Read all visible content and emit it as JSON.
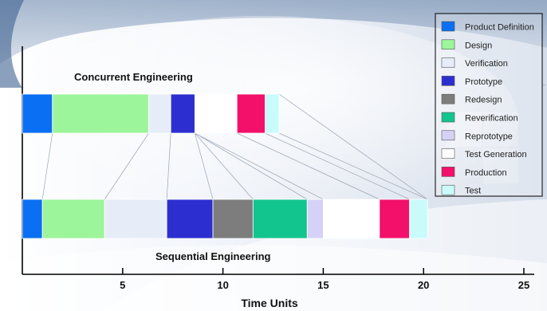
{
  "chart_data": {
    "type": "bar",
    "subtype": "stacked-horizontal-gantt",
    "xlabel": "Time Units",
    "x_ticks": [
      5,
      10,
      15,
      20,
      25
    ],
    "xlim": [
      0,
      25
    ],
    "stages": [
      "Product Definition",
      "Design",
      "Verification",
      "Prototype",
      "Redesign",
      "Reverification",
      "Reprototype",
      "Test Generation",
      "Production",
      "Test"
    ],
    "colors": {
      "Product Definition": "#0a6ff2",
      "Design": "#9cf59a",
      "Verification": "#e6edf8",
      "Prototype": "#2d2ed0",
      "Redesign": "#7d7d7d",
      "Reverification": "#12c48e",
      "Reprototype": "#d6d2f7",
      "Test Generation": "#ffffff",
      "Production": "#f2106a",
      "Test": "#c9fbfb"
    },
    "series": [
      {
        "name": "Concurrent Engineering",
        "segments": [
          {
            "stage": "Product Definition",
            "start": 0.0,
            "end": 1.5
          },
          {
            "stage": "Design",
            "start": 1.5,
            "end": 6.3
          },
          {
            "stage": "Verification",
            "start": 6.3,
            "end": 7.4
          },
          {
            "stage": "Prototype",
            "start": 7.4,
            "end": 8.6
          },
          {
            "stage": "Test Generation",
            "start": 8.6,
            "end": 10.7
          },
          {
            "stage": "Production",
            "start": 10.7,
            "end": 12.1
          },
          {
            "stage": "Test",
            "start": 12.1,
            "end": 12.8
          }
        ]
      },
      {
        "name": "Sequential Engineering",
        "segments": [
          {
            "stage": "Product Definition",
            "start": 0.0,
            "end": 1.0
          },
          {
            "stage": "Design",
            "start": 1.0,
            "end": 4.1
          },
          {
            "stage": "Verification",
            "start": 4.1,
            "end": 7.2
          },
          {
            "stage": "Prototype",
            "start": 7.2,
            "end": 9.5
          },
          {
            "stage": "Redesign",
            "start": 9.5,
            "end": 11.5
          },
          {
            "stage": "Reverification",
            "start": 11.5,
            "end": 14.2
          },
          {
            "stage": "Reprototype",
            "start": 14.2,
            "end": 15.0
          },
          {
            "stage": "Test Generation",
            "start": 15.0,
            "end": 17.8
          },
          {
            "stage": "Production",
            "start": 17.8,
            "end": 19.3
          },
          {
            "stage": "Test",
            "start": 19.3,
            "end": 20.2
          }
        ]
      }
    ],
    "legend_position": "top-right",
    "grid": false
  }
}
